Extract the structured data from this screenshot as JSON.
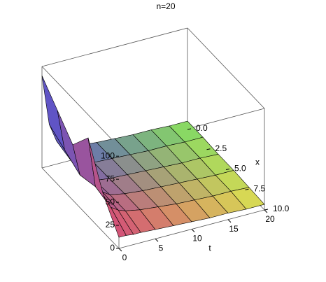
{
  "chart_data": {
    "type": "surface",
    "title": "n=20",
    "t_label": "t",
    "x_label": "x",
    "t": [
      0,
      1,
      2,
      3,
      5,
      7.5,
      10,
      12.5,
      15,
      17.5,
      20
    ],
    "x": [
      0,
      2,
      4,
      6,
      8,
      10
    ],
    "z": [
      [
        100,
        80,
        60,
        85,
        40,
        12
      ],
      [
        45,
        35,
        25,
        30,
        25,
        12
      ],
      [
        25,
        20,
        18,
        22,
        20,
        11
      ],
      [
        18,
        16,
        15,
        17,
        17,
        11
      ],
      [
        14,
        13,
        13,
        14,
        14,
        10
      ],
      [
        12,
        12,
        12,
        12,
        12,
        9
      ],
      [
        11,
        11,
        11,
        11,
        10,
        8
      ],
      [
        10,
        10,
        10,
        10,
        9,
        7
      ],
      [
        10,
        10,
        9,
        9,
        8,
        7
      ],
      [
        9,
        9,
        9,
        8,
        8,
        6
      ],
      [
        9,
        9,
        8,
        8,
        7,
        6
      ]
    ],
    "tlim": [
      0,
      20
    ],
    "xlim": [
      0,
      10
    ],
    "zlim": [
      0,
      110
    ],
    "tticks": [
      0,
      5,
      10,
      15,
      20
    ],
    "xticks": [
      {
        "value": 0,
        "label": "0.0"
      },
      2.5,
      {
        "value": 5,
        "label": "5.0"
      },
      7.5,
      {
        "value": 10,
        "label": "10.0"
      }
    ],
    "zticks": [
      0,
      25,
      50,
      75,
      100
    ]
  }
}
